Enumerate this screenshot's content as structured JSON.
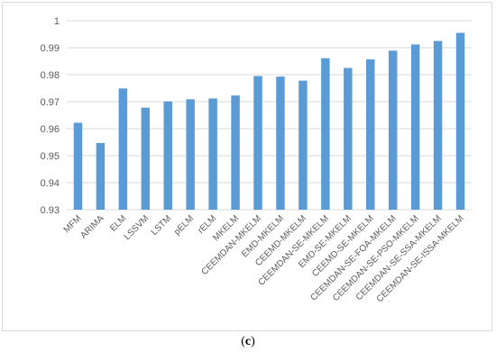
{
  "caption": {
    "open": "(",
    "letter": "c",
    "close": ")"
  },
  "chart_data": {
    "type": "bar",
    "title": "",
    "xlabel": "",
    "ylabel": "",
    "ylim": [
      0.93,
      1.0
    ],
    "yticks": [
      "0.93",
      "0.94",
      "0.95",
      "0.96",
      "0.97",
      "0.98",
      "0.99",
      "1"
    ],
    "grid": true,
    "legend": "none",
    "bar_color": "#5b9bd5",
    "categories": [
      "MFM",
      "ARIMA",
      "ELM",
      "LSSVM",
      "LSTM",
      "pELM",
      "rELM",
      "MKELM",
      "CEEMDAN-MKELM",
      "EMD-MKELM",
      "CEEMD-MKELM",
      "CEEMDAN-SE-MKELM",
      "EMD-SE-MKELM",
      "CEEMD-SE-MKELM",
      "CEEMDAN-SE-FOA-MKELM",
      "CEEMDAN-SE-PSO-MKELM",
      "CEEMDAN-SE-SSA-MKELM",
      "CEEMDAN-SE-ISSA-MKELM"
    ],
    "values": [
      0.9622,
      0.9547,
      0.9749,
      0.9678,
      0.9701,
      0.9709,
      0.9712,
      0.9723,
      0.9795,
      0.9793,
      0.9778,
      0.9861,
      0.9825,
      0.9857,
      0.9889,
      0.9912,
      0.9925,
      0.9955
    ]
  }
}
